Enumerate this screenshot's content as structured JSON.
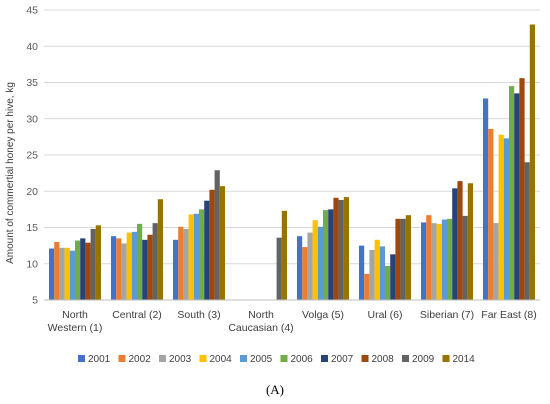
{
  "panel_label": "(A)",
  "chart_data": {
    "type": "bar",
    "title": "",
    "xlabel": "",
    "ylabel": "Amount of commertial honey per hive, kg",
    "ylim": [
      5,
      45
    ],
    "yticks": [
      5,
      10,
      15,
      20,
      25,
      30,
      35,
      40,
      45
    ],
    "grid": true,
    "legend_position": "bottom",
    "categories": [
      [
        "North",
        "Western (1)"
      ],
      [
        "Central (2)"
      ],
      [
        "South (3)"
      ],
      [
        "North",
        "Caucasian (4)"
      ],
      [
        "Volga (5)"
      ],
      [
        "Ural (6)"
      ],
      [
        "Siberian (7)"
      ],
      [
        "Far East (8)"
      ]
    ],
    "series": [
      {
        "name": "2001",
        "color": "#4472C4",
        "values": [
          12.1,
          13.8,
          13.3,
          null,
          13.8,
          12.5,
          15.7,
          32.8
        ]
      },
      {
        "name": "2002",
        "color": "#ED7D31",
        "values": [
          13.0,
          13.5,
          15.1,
          null,
          12.3,
          8.6,
          16.7,
          28.6
        ]
      },
      {
        "name": "2003",
        "color": "#A5A5A5",
        "values": [
          12.2,
          12.8,
          14.8,
          null,
          14.3,
          11.9,
          15.6,
          15.6
        ]
      },
      {
        "name": "2004",
        "color": "#FFC000",
        "values": [
          12.2,
          14.3,
          16.8,
          null,
          16.0,
          13.3,
          15.5,
          27.8
        ]
      },
      {
        "name": "2005",
        "color": "#5B9BD5",
        "values": [
          11.8,
          14.4,
          16.9,
          null,
          15.1,
          12.4,
          16.1,
          27.3
        ]
      },
      {
        "name": "2006",
        "color": "#70AD47",
        "values": [
          13.2,
          15.5,
          17.5,
          null,
          17.4,
          9.7,
          16.2,
          34.5
        ]
      },
      {
        "name": "2007",
        "color": "#264478",
        "values": [
          13.5,
          13.3,
          18.7,
          null,
          17.5,
          11.3,
          20.4,
          33.5
        ]
      },
      {
        "name": "2008",
        "color": "#9E480E",
        "values": [
          12.9,
          14.0,
          20.2,
          null,
          19.1,
          16.2,
          21.4,
          35.6
        ]
      },
      {
        "name": "2009",
        "color": "#636363",
        "values": [
          14.8,
          15.6,
          22.9,
          13.6,
          18.8,
          16.2,
          16.6,
          24.0
        ]
      },
      {
        "name": "2014",
        "color": "#997300",
        "values": [
          15.3,
          18.9,
          20.7,
          17.3,
          19.2,
          16.7,
          21.1,
          43.0
        ]
      }
    ]
  }
}
